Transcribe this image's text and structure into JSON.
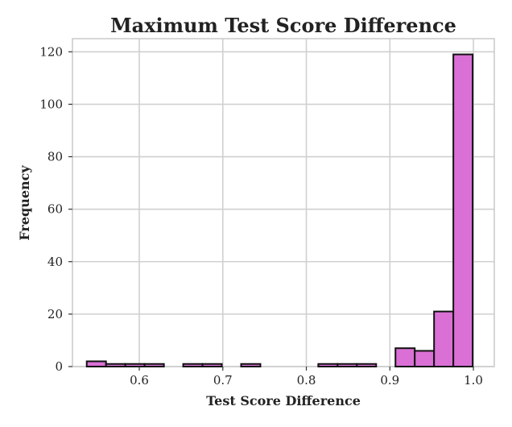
{
  "chart_data": {
    "type": "bar",
    "title": "Maximum Test Score Difference",
    "xlabel": "Test Score Difference",
    "ylabel": "Frequency",
    "xlim": [
      0.52,
      1.025
    ],
    "ylim": [
      0,
      125
    ],
    "x_ticks": [
      0.6,
      0.7,
      0.8,
      0.9,
      1.0
    ],
    "x_tick_labels": [
      "0.6",
      "0.7",
      "0.8",
      "0.9",
      "1.0"
    ],
    "y_ticks": [
      0,
      20,
      40,
      60,
      80,
      100,
      120
    ],
    "y_tick_labels": [
      "0",
      "20",
      "40",
      "60",
      "80",
      "100",
      "120"
    ],
    "grid": true,
    "bar_color": "#da70d6",
    "edge_color": "#111111",
    "bins": [
      {
        "x0": 0.5371,
        "x1": 0.5602,
        "count": 2
      },
      {
        "x0": 0.5602,
        "x1": 0.5833,
        "count": 1
      },
      {
        "x0": 0.5833,
        "x1": 0.6064,
        "count": 1
      },
      {
        "x0": 0.6064,
        "x1": 0.6295,
        "count": 1
      },
      {
        "x0": 0.6526,
        "x1": 0.6757,
        "count": 1
      },
      {
        "x0": 0.6757,
        "x1": 0.6988,
        "count": 1
      },
      {
        "x0": 0.7219,
        "x1": 0.745,
        "count": 1
      },
      {
        "x0": 0.8143,
        "x1": 0.8374,
        "count": 1
      },
      {
        "x0": 0.8374,
        "x1": 0.8605,
        "count": 1
      },
      {
        "x0": 0.8605,
        "x1": 0.8836,
        "count": 1
      },
      {
        "x0": 0.9067,
        "x1": 0.9298,
        "count": 7
      },
      {
        "x0": 0.9298,
        "x1": 0.9529,
        "count": 6
      },
      {
        "x0": 0.9529,
        "x1": 0.976,
        "count": 21
      },
      {
        "x0": 0.976,
        "x1": 0.9991,
        "count": 119
      }
    ]
  }
}
